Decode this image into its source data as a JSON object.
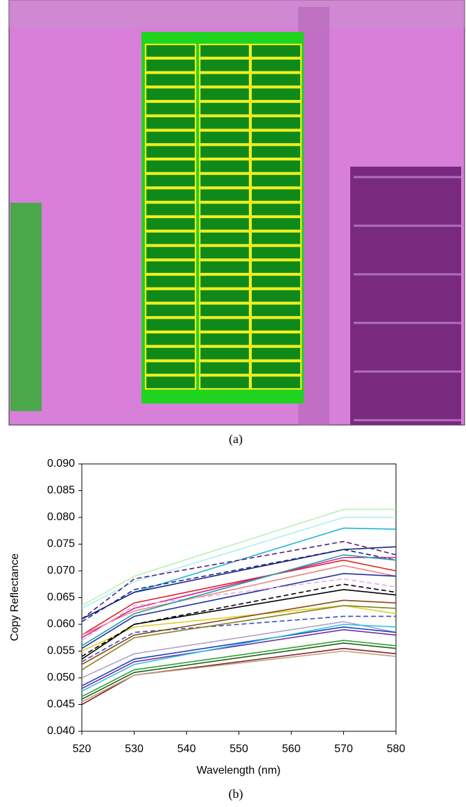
{
  "image_caption": "(a)",
  "chart_data": {
    "type": "line",
    "caption": "(b)",
    "x_label": "Wavelength (nm)",
    "y_label": "Copy Reflectance",
    "x": [
      520,
      530,
      570,
      580
    ],
    "xlim": [
      520,
      580
    ],
    "xticks": [
      520,
      530,
      540,
      550,
      560,
      570,
      580
    ],
    "ylim": [
      0.04,
      0.09
    ],
    "yticks": [
      {
        "value": 0.04,
        "label": "0.040"
      },
      {
        "value": 0.045,
        "label": "0.045"
      },
      {
        "value": 0.05,
        "label": "0.050"
      },
      {
        "value": 0.055,
        "label": "0.055"
      },
      {
        "value": 0.06,
        "label": "0.060"
      },
      {
        "value": 0.065,
        "label": "0.065"
      },
      {
        "value": 0.07,
        "label": "0.070"
      },
      {
        "value": 0.075,
        "label": "0.075"
      },
      {
        "value": 0.08,
        "label": "0.080"
      },
      {
        "value": 0.085,
        "label": "0.085"
      },
      {
        "value": 0.09,
        "label": "0.090"
      }
    ],
    "grid": false,
    "series": [
      {
        "color": "#b8f0b8",
        "values": [
          0.0635,
          0.069,
          0.0815,
          0.0815
        ]
      },
      {
        "color": "#aeeeee",
        "values": [
          0.063,
          0.068,
          0.08,
          0.08
        ]
      },
      {
        "color": "#1fb5d5",
        "values": [
          0.061,
          0.066,
          0.078,
          0.0778
        ]
      },
      {
        "color": "#5a1a7a",
        "dashed": true,
        "values": [
          0.061,
          0.0685,
          0.0755,
          0.073
        ]
      },
      {
        "color": "#1a237e",
        "values": [
          0.061,
          0.066,
          0.074,
          0.0745
        ]
      },
      {
        "color": "#1a237e",
        "dashed": true,
        "values": [
          0.0605,
          0.0665,
          0.074,
          0.072
        ]
      },
      {
        "color": "#e02020",
        "values": [
          0.058,
          0.064,
          0.072,
          0.07
        ]
      },
      {
        "color": "#d020a0",
        "values": [
          0.0575,
          0.063,
          0.0725,
          0.0725
        ]
      },
      {
        "color": "#f08080",
        "values": [
          0.058,
          0.0625,
          0.071,
          0.069
        ]
      },
      {
        "color": "#2030a0",
        "values": [
          0.0555,
          0.0615,
          0.0695,
          0.069
        ]
      },
      {
        "color": "#e0b0e0",
        "dashed": true,
        "values": [
          0.057,
          0.0635,
          0.0685,
          0.067
        ]
      },
      {
        "color": "#20a0a0",
        "values": [
          0.056,
          0.062,
          0.073,
          0.072
        ]
      },
      {
        "color": "#e0d020",
        "values": [
          0.055,
          0.0595,
          0.0635,
          0.062
        ]
      },
      {
        "color": "#000000",
        "values": [
          0.0535,
          0.06,
          0.0665,
          0.0655
        ]
      },
      {
        "color": "#3050c0",
        "dashed": true,
        "values": [
          0.053,
          0.0585,
          0.0615,
          0.0615
        ]
      },
      {
        "color": "#808020",
        "values": [
          0.0515,
          0.0575,
          0.0635,
          0.063
        ]
      },
      {
        "color": "#8b4513",
        "values": [
          0.0525,
          0.058,
          0.0645,
          0.064
        ]
      },
      {
        "color": "#000000",
        "dashed": true,
        "values": [
          0.054,
          0.06,
          0.0675,
          0.066
        ]
      },
      {
        "color": "#b0a0d0",
        "values": [
          0.05,
          0.0545,
          0.0605,
          0.0585
        ]
      },
      {
        "color": "#1a40c0",
        "values": [
          0.0485,
          0.0535,
          0.0595,
          0.0585
        ]
      },
      {
        "color": "#7030a0",
        "values": [
          0.048,
          0.053,
          0.059,
          0.058
        ]
      },
      {
        "color": "#30c0e0",
        "values": [
          0.0475,
          0.0525,
          0.06,
          0.0595
        ]
      },
      {
        "color": "#206020",
        "values": [
          0.046,
          0.051,
          0.0565,
          0.0555
        ]
      },
      {
        "color": "#30a030",
        "values": [
          0.0465,
          0.0515,
          0.057,
          0.056
        ]
      },
      {
        "color": "#802020",
        "values": [
          0.045,
          0.0505,
          0.0555,
          0.0545
        ]
      },
      {
        "color": "#c0a080",
        "values": [
          0.0455,
          0.0505,
          0.055,
          0.054
        ]
      }
    ]
  }
}
